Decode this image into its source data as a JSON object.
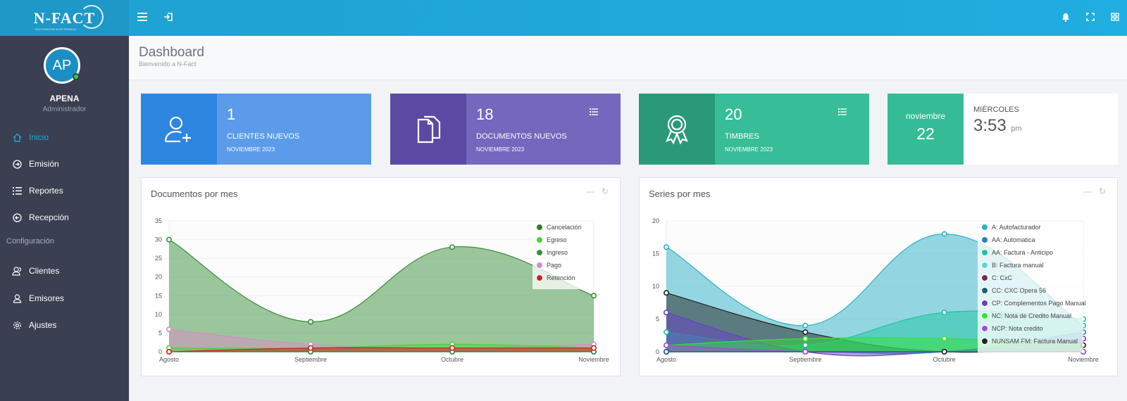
{
  "brand": {
    "logo_text": "N-FACT",
    "logo_tagline": "FACTURACION ELECTRONICA"
  },
  "user": {
    "initials": "AP",
    "name": "APENA",
    "role": "Administrador"
  },
  "nav": {
    "items": [
      {
        "label": "Inicio",
        "icon": "home-icon"
      },
      {
        "label": "Emisión",
        "icon": "arrow-circle-icon"
      },
      {
        "label": "Reportes",
        "icon": "list-icon"
      }
    ],
    "reception": {
      "label": "Recepción",
      "icon": "arrow-left-circle-icon"
    },
    "section_label": "Configuración",
    "config_items": [
      {
        "label": "Clientes",
        "icon": "users-icon"
      },
      {
        "label": "Emisores",
        "icon": "user-icon"
      },
      {
        "label": "Ajustes",
        "icon": "gear-icon"
      }
    ]
  },
  "header": {
    "title": "Dashboard",
    "subtitle": "Bienvenido a N-Fact"
  },
  "stats": [
    {
      "value": "1",
      "label": "CLIENTES NUEVOS",
      "period": "NOVIEMBRE 2023",
      "icon": "user-add-icon",
      "color": "#5b9bea",
      "icon_bg": "#2f86e0"
    },
    {
      "value": "18",
      "label": "DOCUMENTOS NUEVOS",
      "period": "NOVIEMBRE 2023",
      "icon": "documents-icon",
      "color": "#7566be",
      "icon_bg": "#5a4aa4"
    },
    {
      "value": "20",
      "label": "TIMBRES",
      "period": "NOVIEMBRE 2023",
      "icon": "award-icon",
      "color": "#37bd98",
      "icon_bg": "#2a997a"
    }
  ],
  "date_card": {
    "month": "noviembre",
    "day": "22",
    "weekday": "MIÉRCOLES",
    "time": "3:53",
    "ampm": "pm"
  },
  "panels": {
    "left_title": "Documentos por mes",
    "right_title": "Series por mes"
  },
  "chart_data": [
    {
      "type": "area",
      "title": "Documentos por mes",
      "categories": [
        "Agosto",
        "Septiembre",
        "Octubre",
        "Noviembre"
      ],
      "ylim": [
        0,
        35
      ],
      "yticks": [
        0,
        5,
        10,
        15,
        20,
        25,
        30,
        35
      ],
      "legend_position": "top-right",
      "series": [
        {
          "name": "Cancelación",
          "color": "#2e7d32",
          "values": [
            0,
            0,
            0,
            0
          ]
        },
        {
          "name": "Egreso",
          "color": "#4cd137",
          "values": [
            1,
            1,
            2,
            1
          ]
        },
        {
          "name": "Ingreso",
          "color": "#3a8f3a",
          "values": [
            30,
            8,
            28,
            15
          ]
        },
        {
          "name": "Pago",
          "color": "#d98bc7",
          "values": [
            6,
            2,
            1,
            2
          ]
        },
        {
          "name": "Retención",
          "color": "#d11f1f",
          "values": [
            0,
            1,
            1,
            1
          ]
        }
      ]
    },
    {
      "type": "area",
      "title": "Series por mes",
      "categories": [
        "Agosto",
        "Septiembre",
        "Octubre",
        "Noviembre"
      ],
      "ylim": [
        0,
        20
      ],
      "yticks": [
        0,
        5,
        10,
        15,
        20
      ],
      "legend_position": "top-right",
      "series": [
        {
          "name": "A: Autofacturador",
          "color": "#2ab0c6",
          "values": [
            16,
            4,
            18,
            4
          ]
        },
        {
          "name": "AA: Automatica",
          "color": "#2a7fbf",
          "values": [
            0,
            0,
            0,
            3
          ]
        },
        {
          "name": "AA: Factura - Anticipo",
          "color": "#1fc3a0",
          "values": [
            3,
            1,
            6,
            5
          ]
        },
        {
          "name": "B: Factura manual",
          "color": "#5fd3d8",
          "values": [
            0,
            0,
            0,
            0
          ]
        },
        {
          "name": "C: CxC",
          "color": "#7a2a4a",
          "values": [
            0,
            0,
            0,
            0
          ]
        },
        {
          "name": "CC: CXC Opera 56",
          "color": "#1a5f7a",
          "values": [
            0,
            0,
            0,
            0
          ]
        },
        {
          "name": "CP: Complementos Pago Manual",
          "color": "#6a3fc7",
          "values": [
            6,
            0,
            0,
            2
          ]
        },
        {
          "name": "NC: Nota de Credito Manual",
          "color": "#33e233",
          "values": [
            1,
            2,
            2,
            1
          ]
        },
        {
          "name": "NCP: Nota credito",
          "color": "#a24ad8",
          "values": [
            1,
            0,
            0,
            0
          ]
        },
        {
          "name": "NUNSAM FM: Factura Manual",
          "color": "#222222",
          "values": [
            9,
            3,
            0,
            1
          ]
        }
      ]
    }
  ]
}
